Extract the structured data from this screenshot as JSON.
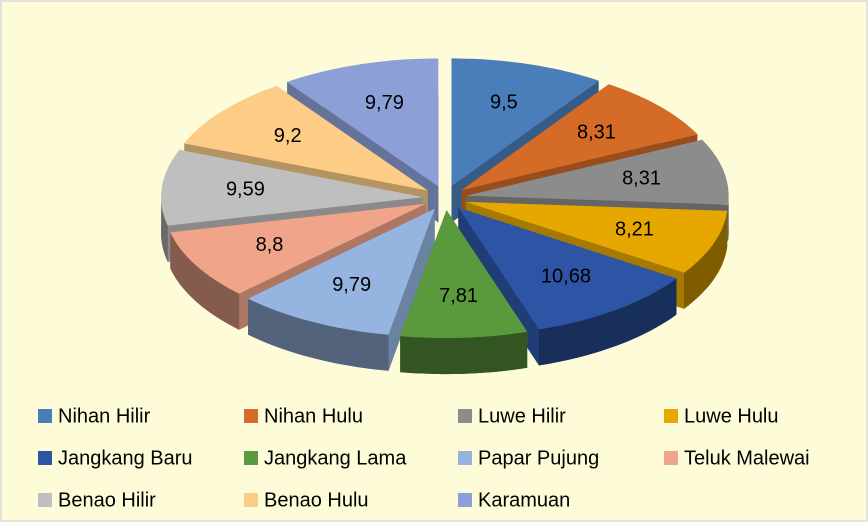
{
  "chart_data": {
    "type": "pie",
    "categories": [
      "Nihan Hilir",
      "Nihan Hulu",
      "Luwe Hilir",
      "Luwe Hulu",
      "Jangkang Baru",
      "Jangkang Lama",
      "Papar Pujung",
      "Teluk Malewai",
      "Benao Hilir",
      "Benao Hulu",
      "Karamuan"
    ],
    "values": [
      9.5,
      8.31,
      8.31,
      8.21,
      10.68,
      7.81,
      9.79,
      8.8,
      9.59,
      9.2,
      9.79
    ],
    "value_labels": [
      "9,5",
      "8,31",
      "8,31",
      "8,21",
      "10,68",
      "7,81",
      "9,79",
      "8,8",
      "9,59",
      "9,2",
      "9,79"
    ],
    "colors": [
      "#4a7ebb",
      "#d46b26",
      "#8c8c8c",
      "#e6a800",
      "#2e55a5",
      "#5a9a3c",
      "#95b4e0",
      "#f0a58b",
      "#bfbfbf",
      "#fdcd88",
      "#8c9fd6"
    ],
    "legend": "bottom"
  }
}
